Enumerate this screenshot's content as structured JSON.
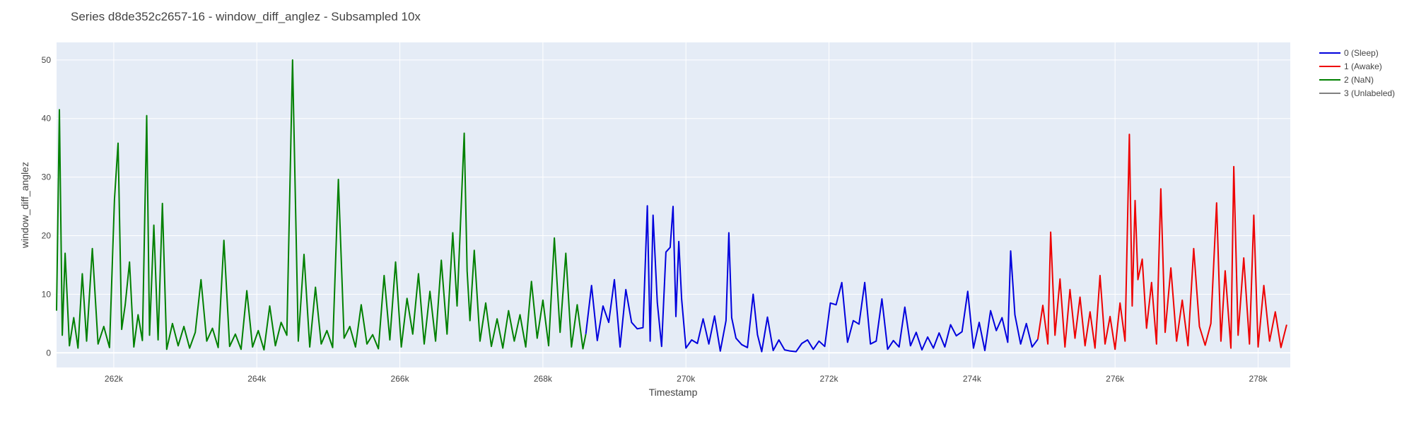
{
  "chart_data": {
    "type": "line",
    "title": "Series d8de352c2657-16 - window_diff_anglez - Subsampled 10x",
    "xlabel": "Timestamp",
    "ylabel": "window_diff_anglez",
    "xlim": [
      261200,
      278450
    ],
    "ylim": [
      -2.5,
      53
    ],
    "grid": true,
    "legend_position": "top-right, outside plot",
    "x_ticks": [
      {
        "value": 262000,
        "label": "262k"
      },
      {
        "value": 264000,
        "label": "264k"
      },
      {
        "value": 266000,
        "label": "266k"
      },
      {
        "value": 268000,
        "label": "268k"
      },
      {
        "value": 270000,
        "label": "270k"
      },
      {
        "value": 272000,
        "label": "272k"
      },
      {
        "value": 274000,
        "label": "274k"
      },
      {
        "value": 276000,
        "label": "276k"
      },
      {
        "value": 278000,
        "label": "278k"
      }
    ],
    "y_ticks": [
      {
        "value": 0,
        "label": "0"
      },
      {
        "value": 10,
        "label": "10"
      },
      {
        "value": 20,
        "label": "20"
      },
      {
        "value": 30,
        "label": "30"
      },
      {
        "value": 40,
        "label": "40"
      },
      {
        "value": 50,
        "label": "50"
      }
    ],
    "series": [
      {
        "name": "0 (Sleep)",
        "color": "#0000dd",
        "x": [
          268600,
          268680,
          268760,
          268840,
          268920,
          269000,
          269080,
          269160,
          269240,
          269320,
          269400,
          269460,
          269500,
          269540,
          269600,
          269660,
          269720,
          269780,
          269820,
          269860,
          269900,
          269940,
          270000,
          270080,
          270160,
          270240,
          270320,
          270400,
          270480,
          270560,
          270600,
          270640,
          270700,
          270780,
          270860,
          270940,
          271000,
          271060,
          271140,
          271220,
          271300,
          271380,
          271460,
          271540,
          271620,
          271700,
          271780,
          271860,
          271940,
          272020,
          272100,
          272180,
          272260,
          272340,
          272420,
          272500,
          272580,
          272660,
          272740,
          272820,
          272900,
          272980,
          273060,
          273140,
          273220,
          273300,
          273380,
          273460,
          273540,
          273620,
          273700,
          273780,
          273860,
          273940,
          274020,
          274100,
          274180,
          274260,
          274340,
          274420,
          274500,
          274540,
          274600,
          274680,
          274760,
          274840,
          274920
        ],
        "y": [
          3.2,
          11.5,
          2.1,
          8.0,
          5.2,
          12.5,
          1.0,
          10.8,
          5.2,
          4.1,
          4.3,
          25.1,
          2.0,
          23.5,
          8.6,
          1.1,
          17.2,
          18.0,
          25.0,
          6.2,
          19.0,
          9.2,
          0.8,
          2.2,
          1.6,
          5.8,
          1.5,
          6.3,
          0.3,
          5.5,
          20.5,
          6.0,
          2.5,
          1.4,
          0.9,
          10.0,
          3.1,
          0.2,
          6.1,
          0.4,
          2.2,
          0.5,
          0.3,
          0.2,
          1.6,
          2.2,
          0.6,
          2.0,
          1.1,
          8.5,
          8.2,
          12.0,
          1.8,
          5.5,
          4.9,
          12.0,
          1.5,
          2.0,
          9.2,
          0.6,
          2.1,
          1.0,
          7.8,
          1.2,
          3.5,
          0.5,
          2.7,
          0.8,
          3.4,
          1.0,
          4.8,
          2.9,
          3.6,
          10.5,
          0.8,
          5.2,
          0.4,
          7.2,
          3.8,
          6.0,
          1.8,
          17.4,
          6.5,
          1.5,
          5.0,
          1.0,
          2.3
        ]
      },
      {
        "name": "1 (Awake)",
        "color": "#ee0000",
        "x": [
          274920,
          274990,
          275060,
          275100,
          275160,
          275230,
          275300,
          275370,
          275440,
          275510,
          275580,
          275650,
          275720,
          275790,
          275860,
          275930,
          276000,
          276070,
          276140,
          276200,
          276240,
          276280,
          276320,
          276380,
          276440,
          276510,
          276580,
          276640,
          276700,
          276780,
          276860,
          276940,
          277020,
          277100,
          277180,
          277260,
          277340,
          277420,
          277480,
          277540,
          277620,
          277660,
          277720,
          277800,
          277880,
          277940,
          278000,
          278080,
          278160,
          278240,
          278320,
          278400
        ],
        "y": [
          2.3,
          8.1,
          1.5,
          20.6,
          3.0,
          12.6,
          1.0,
          10.8,
          2.5,
          9.5,
          1.2,
          7.0,
          0.8,
          13.2,
          1.5,
          6.2,
          0.6,
          8.5,
          2.0,
          37.3,
          8.0,
          26.0,
          12.5,
          16.0,
          4.2,
          12.0,
          1.5,
          28.0,
          3.5,
          14.5,
          2.0,
          9.0,
          1.2,
          17.8,
          4.5,
          1.3,
          5.0,
          25.6,
          2.0,
          14.0,
          0.8,
          31.8,
          3.0,
          16.2,
          1.5,
          23.5,
          1.0,
          11.5,
          2.0,
          7.0,
          0.9,
          4.8
        ]
      },
      {
        "name": "2 (NaN)",
        "color": "#008000",
        "x": [
          261200,
          261240,
          261280,
          261320,
          261380,
          261440,
          261500,
          261560,
          261620,
          261700,
          261780,
          261860,
          261940,
          262010,
          262060,
          262110,
          262160,
          262220,
          262280,
          262340,
          262400,
          262460,
          262500,
          262560,
          262620,
          262680,
          262740,
          262820,
          262900,
          262980,
          263060,
          263140,
          263220,
          263300,
          263380,
          263460,
          263540,
          263620,
          263700,
          263780,
          263860,
          263940,
          264020,
          264100,
          264180,
          264260,
          264340,
          264420,
          264500,
          264580,
          264660,
          264740,
          264820,
          264900,
          264980,
          265060,
          265140,
          265220,
          265300,
          265380,
          265460,
          265540,
          265620,
          265700,
          265780,
          265860,
          265940,
          266020,
          266100,
          266180,
          266260,
          266340,
          266420,
          266500,
          266580,
          266660,
          266740,
          266800,
          266860,
          266900,
          266940,
          266980,
          267040,
          267120,
          267200,
          267280,
          267360,
          267440,
          267520,
          267600,
          267680,
          267760,
          267840,
          267920,
          268000,
          268080,
          268160,
          268240,
          268320,
          268400,
          268480,
          268560,
          268600
        ],
        "y": [
          7.2,
          41.5,
          3.0,
          17.0,
          1.2,
          6.0,
          0.8,
          13.5,
          2.0,
          17.8,
          1.5,
          4.5,
          0.9,
          26.2,
          35.8,
          4.0,
          8.2,
          15.5,
          1.0,
          6.5,
          2.1,
          40.5,
          3.0,
          21.8,
          2.2,
          25.5,
          0.6,
          5.0,
          1.2,
          4.5,
          0.8,
          3.5,
          12.5,
          2.0,
          4.2,
          0.9,
          19.2,
          1.1,
          3.2,
          0.6,
          10.6,
          1.0,
          3.8,
          0.5,
          8.0,
          1.2,
          5.2,
          3.0,
          50.0,
          2.0,
          16.8,
          1.0,
          11.2,
          1.5,
          3.8,
          0.9,
          29.6,
          2.5,
          4.5,
          1.0,
          8.2,
          1.5,
          3.1,
          0.7,
          13.2,
          2.2,
          15.5,
          1.0,
          9.3,
          3.2,
          13.5,
          1.5,
          10.5,
          2.0,
          15.8,
          3.2,
          20.5,
          8.0,
          25.8,
          37.5,
          14.0,
          5.5,
          17.5,
          2.0,
          8.5,
          1.1,
          5.8,
          0.8,
          7.2,
          2.0,
          6.5,
          1.0,
          12.2,
          2.5,
          9.0,
          1.2,
          19.6,
          3.5,
          17.0,
          1.0,
          8.2,
          0.7,
          3.2
        ]
      },
      {
        "name": "3 (Unlabeled)",
        "color": "#808080",
        "x": [],
        "y": []
      }
    ]
  }
}
